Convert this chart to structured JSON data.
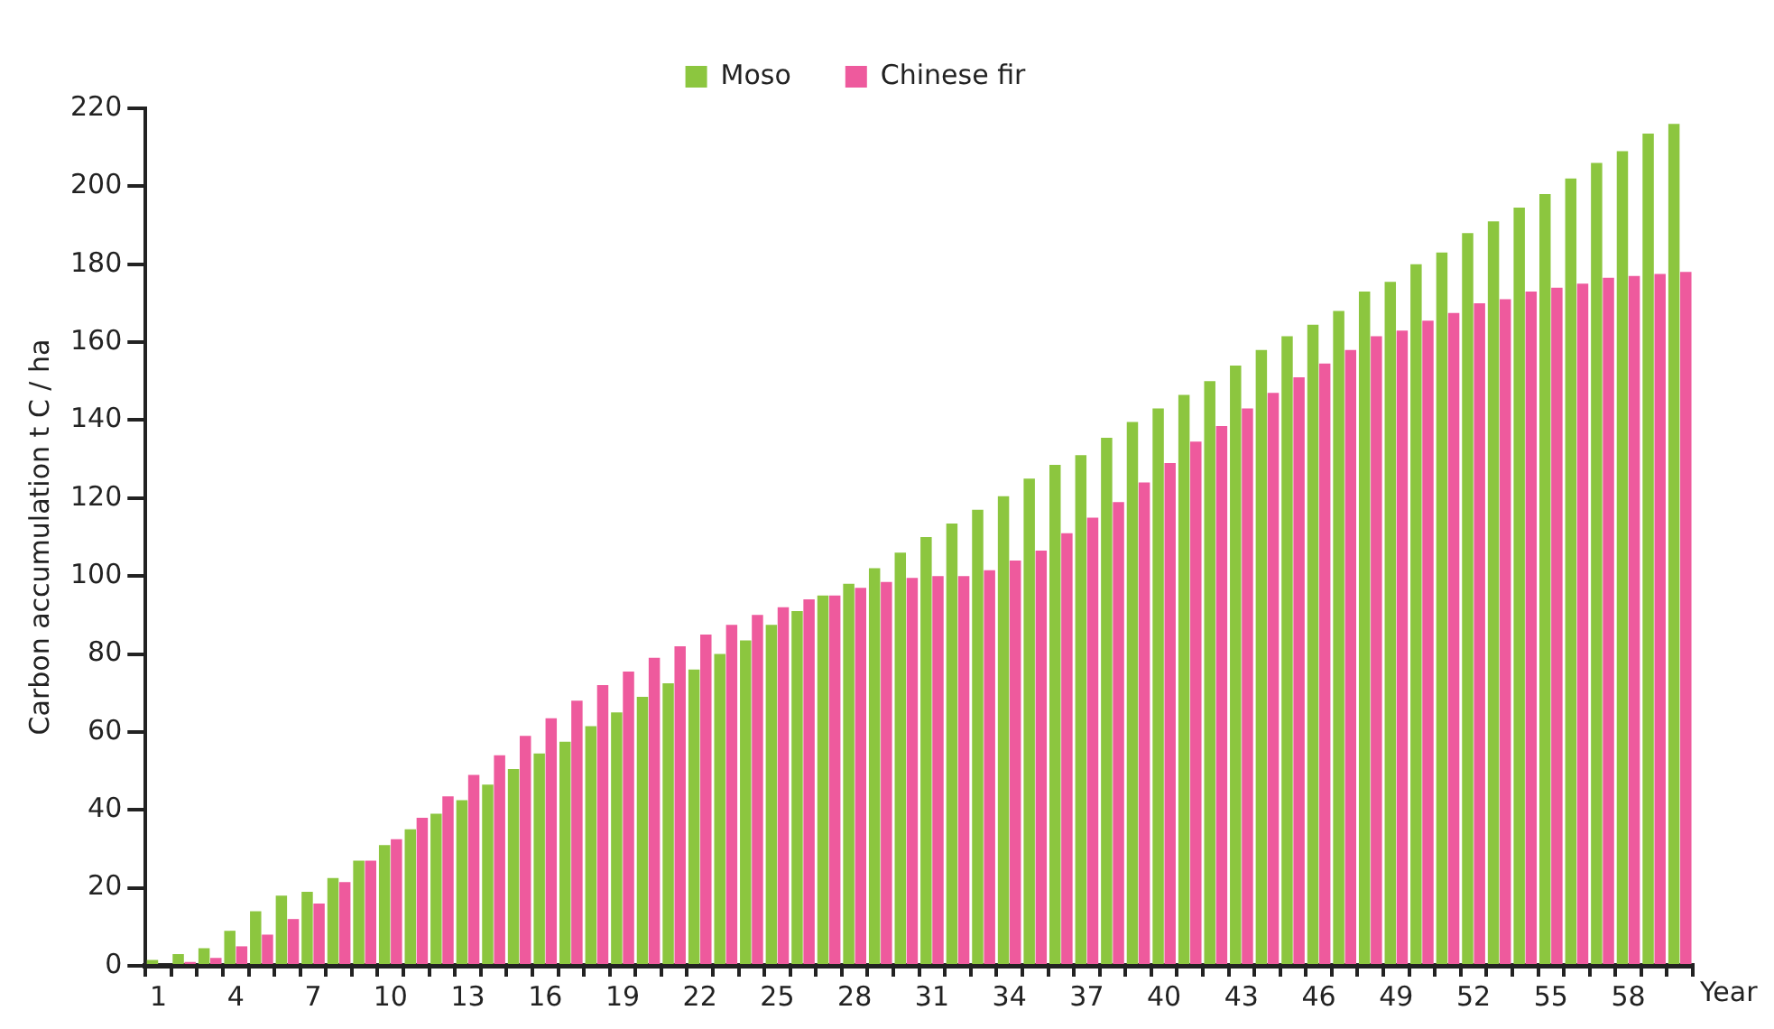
{
  "chart_data": {
    "type": "bar",
    "ylabel": "Carbon accumulation t C / ha",
    "xlabel": "Year",
    "categories": [
      "1",
      null,
      null,
      "4",
      null,
      null,
      "7",
      null,
      null,
      "10",
      null,
      null,
      "13",
      null,
      null,
      "16",
      null,
      null,
      "19",
      null,
      null,
      "22",
      null,
      null,
      "25",
      null,
      null,
      "28",
      null,
      null,
      "31",
      null,
      null,
      "34",
      null,
      null,
      "37",
      null,
      null,
      "40",
      null,
      null,
      "43",
      null,
      null,
      "46",
      null,
      null,
      "49",
      null,
      null,
      "52",
      null,
      null,
      "55",
      null,
      null,
      "58",
      null,
      null
    ],
    "series": [
      {
        "name": "Moso",
        "color": "#8cc63f",
        "values": [
          1.5,
          3,
          4.5,
          9,
          14,
          18,
          19,
          22.5,
          27,
          31,
          35,
          39,
          42.5,
          46.5,
          50.5,
          54.5,
          57.5,
          61.5,
          65,
          69,
          72.5,
          76,
          80,
          83.5,
          87.5,
          91,
          95,
          98,
          102,
          106,
          110,
          113.5,
          117,
          120.5,
          125,
          128.5,
          131,
          135.5,
          139.5,
          143,
          146.5,
          150,
          154,
          158,
          161.5,
          164.5,
          168,
          173,
          175.5,
          180,
          183,
          188,
          191,
          194.5,
          198,
          202,
          206,
          209,
          213.5,
          216
        ]
      },
      {
        "name": "Chinese fir",
        "color": "#ee5a9d",
        "values": [
          0,
          1,
          2,
          5,
          8,
          12,
          16,
          21.5,
          27,
          32.5,
          38,
          43.5,
          49,
          54,
          59,
          63.5,
          68,
          72,
          75.5,
          79,
          82,
          85,
          87.5,
          90,
          92,
          94,
          95,
          97,
          98.5,
          99.5,
          100,
          100,
          101.5,
          104,
          106.5,
          111,
          115,
          119,
          124,
          129,
          134.5,
          138.5,
          143,
          147,
          151,
          154.5,
          158,
          161.5,
          163,
          165.5,
          167.5,
          170,
          171,
          173,
          174,
          175,
          176.5,
          177,
          177.5,
          178
        ]
      }
    ],
    "ylim": [
      0,
      220
    ],
    "yticks": [
      0,
      20,
      40,
      60,
      80,
      100,
      120,
      140,
      160,
      180,
      200,
      220
    ],
    "grid": false,
    "legend": "top"
  }
}
